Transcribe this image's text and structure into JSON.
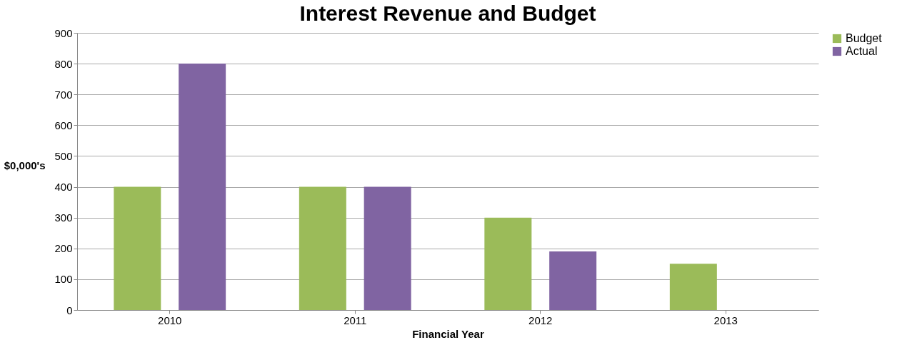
{
  "chart_data": {
    "type": "bar",
    "title": "Interest Revenue and Budget",
    "xlabel": "Financial Year",
    "ylabel": "$0,000's",
    "categories": [
      "2010",
      "2011",
      "2012",
      "2013"
    ],
    "series": [
      {
        "name": "Budget",
        "color": "#9bbb59",
        "values": [
          400,
          400,
          300,
          150
        ]
      },
      {
        "name": "Actual",
        "color": "#8064a2",
        "values": [
          800,
          400,
          190,
          null
        ]
      }
    ],
    "ylim": [
      0,
      900
    ],
    "yticks": [
      0,
      100,
      200,
      300,
      400,
      500,
      600,
      700,
      800,
      900
    ],
    "grid": "y",
    "legend": "right"
  }
}
